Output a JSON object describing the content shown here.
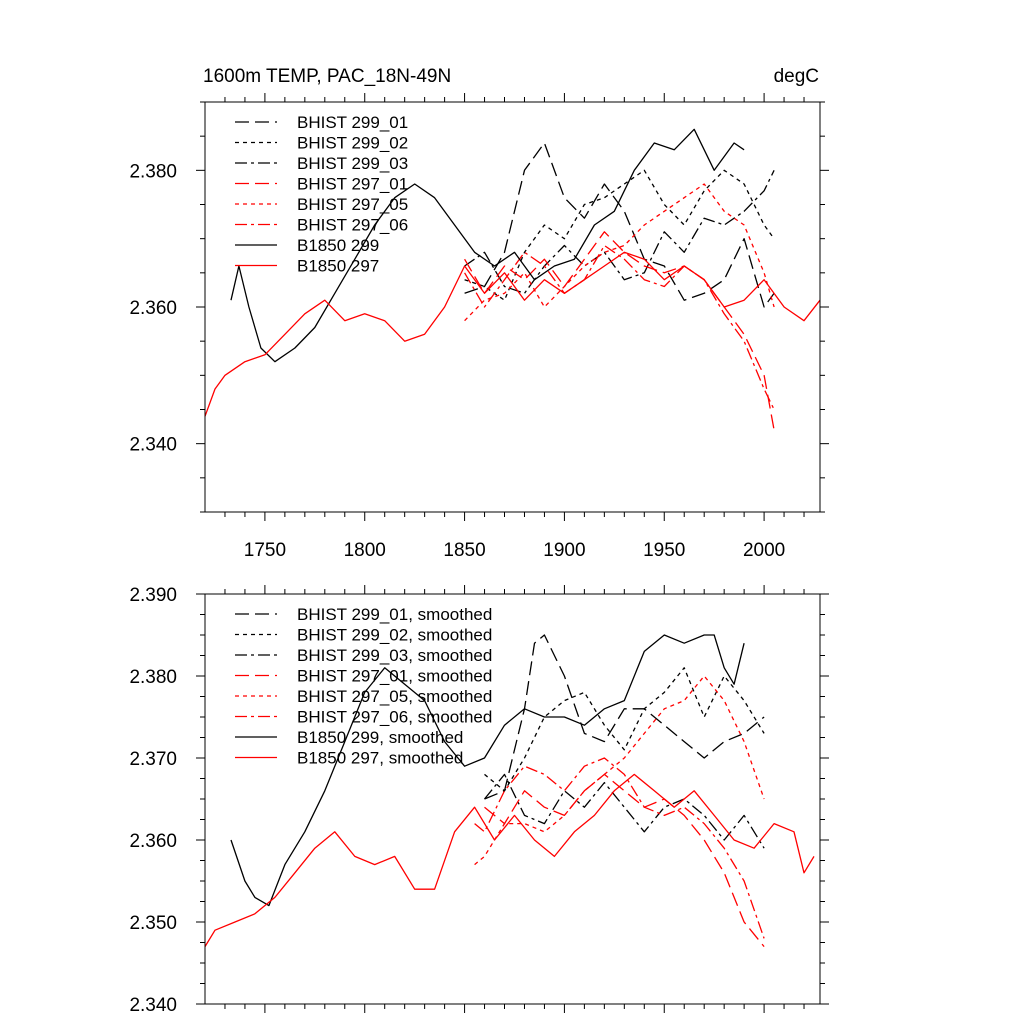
{
  "chart_data": [
    {
      "type": "line",
      "title": "1600m TEMP, PAC_18N-49N",
      "title_right": "degC",
      "xlim": [
        1720,
        2028
      ],
      "ylim": [
        2.33,
        2.39
      ],
      "xticks": [
        1750,
        1800,
        1850,
        1900,
        1950,
        2000
      ],
      "xtick_labels": [
        "1750",
        "1800",
        "1850",
        "1900",
        "1950",
        "2000"
      ],
      "yticks": [
        2.34,
        2.36,
        2.38
      ],
      "ytick_labels": [
        "2.340",
        "2.360",
        "2.380"
      ],
      "grid": false,
      "legend_position": "top-left",
      "series": [
        {
          "name": "BHIST 299_01",
          "color": "#000000",
          "style": "long-dash",
          "x": [
            1850,
            1860,
            1870,
            1880,
            1890,
            1900,
            1910,
            1920,
            1930,
            1940,
            1950,
            1960,
            1970,
            1980,
            1990,
            2000,
            2005
          ],
          "y": [
            2.362,
            2.363,
            2.368,
            2.38,
            2.384,
            2.376,
            2.373,
            2.378,
            2.374,
            2.367,
            2.366,
            2.361,
            2.362,
            2.364,
            2.37,
            2.36,
            2.362
          ]
        },
        {
          "name": "BHIST 299_02",
          "color": "#000000",
          "style": "short-dash",
          "x": [
            1850,
            1860,
            1870,
            1880,
            1890,
            1900,
            1910,
            1920,
            1930,
            1940,
            1950,
            1960,
            1970,
            1980,
            1990,
            2000,
            2005
          ],
          "y": [
            2.364,
            2.363,
            2.361,
            2.368,
            2.372,
            2.37,
            2.375,
            2.376,
            2.378,
            2.38,
            2.375,
            2.372,
            2.377,
            2.38,
            2.378,
            2.372,
            2.37
          ]
        },
        {
          "name": "BHIST 299_03",
          "color": "#000000",
          "style": "dash-dot",
          "x": [
            1850,
            1860,
            1870,
            1880,
            1890,
            1900,
            1910,
            1920,
            1930,
            1940,
            1950,
            1960,
            1970,
            1980,
            1990,
            2000,
            2005
          ],
          "y": [
            2.366,
            2.368,
            2.363,
            2.362,
            2.366,
            2.369,
            2.366,
            2.368,
            2.364,
            2.365,
            2.371,
            2.368,
            2.373,
            2.372,
            2.374,
            2.377,
            2.38
          ]
        },
        {
          "name": "BHIST 297_01",
          "color": "#ff0000",
          "style": "long-dash",
          "x": [
            1850,
            1860,
            1870,
            1880,
            1890,
            1900,
            1910,
            1920,
            1930,
            1940,
            1950,
            1960,
            1970,
            1980,
            1990,
            2000,
            2005
          ],
          "y": [
            2.367,
            2.362,
            2.366,
            2.364,
            2.367,
            2.363,
            2.367,
            2.371,
            2.368,
            2.366,
            2.365,
            2.366,
            2.364,
            2.36,
            2.356,
            2.35,
            2.342
          ]
        },
        {
          "name": "BHIST 297_05",
          "color": "#ff0000",
          "style": "short-dash",
          "x": [
            1850,
            1860,
            1870,
            1880,
            1890,
            1900,
            1910,
            1920,
            1930,
            1940,
            1950,
            1960,
            1970,
            1980,
            1990,
            2000,
            2005
          ],
          "y": [
            2.358,
            2.361,
            2.362,
            2.365,
            2.36,
            2.363,
            2.366,
            2.368,
            2.369,
            2.372,
            2.374,
            2.376,
            2.378,
            2.374,
            2.372,
            2.365,
            2.36
          ]
        },
        {
          "name": "BHIST 297_06",
          "color": "#ff0000",
          "style": "dash-dot",
          "x": [
            1850,
            1860,
            1870,
            1880,
            1890,
            1900,
            1910,
            1920,
            1930,
            1940,
            1950,
            1960,
            1970,
            1980,
            1990,
            2000,
            2005
          ],
          "y": [
            2.365,
            2.36,
            2.364,
            2.368,
            2.366,
            2.362,
            2.364,
            2.369,
            2.367,
            2.364,
            2.363,
            2.366,
            2.364,
            2.359,
            2.355,
            2.348,
            2.345
          ]
        },
        {
          "name": "B1850 299",
          "color": "#000000",
          "style": "solid",
          "x": [
            1733,
            1737,
            1742,
            1748,
            1755,
            1765,
            1775,
            1785,
            1795,
            1805,
            1815,
            1825,
            1835,
            1845,
            1855,
            1865,
            1875,
            1885,
            1895,
            1905,
            1915,
            1925,
            1935,
            1945,
            1955,
            1965,
            1975,
            1985,
            1990
          ],
          "y": [
            2.361,
            2.366,
            2.36,
            2.354,
            2.352,
            2.354,
            2.357,
            2.362,
            2.367,
            2.372,
            2.376,
            2.378,
            2.376,
            2.372,
            2.368,
            2.366,
            2.368,
            2.364,
            2.366,
            2.367,
            2.372,
            2.374,
            2.38,
            2.384,
            2.383,
            2.386,
            2.38,
            2.384,
            2.383
          ]
        },
        {
          "name": "B1850 297",
          "color": "#ff0000",
          "style": "solid",
          "x": [
            1720,
            1725,
            1730,
            1740,
            1750,
            1760,
            1770,
            1780,
            1790,
            1800,
            1810,
            1820,
            1830,
            1840,
            1850,
            1860,
            1870,
            1880,
            1890,
            1900,
            1910,
            1920,
            1930,
            1940,
            1950,
            1960,
            1970,
            1980,
            1990,
            2000,
            2010,
            2020,
            2028
          ],
          "y": [
            2.344,
            2.348,
            2.35,
            2.352,
            2.353,
            2.356,
            2.359,
            2.361,
            2.358,
            2.359,
            2.358,
            2.355,
            2.356,
            2.36,
            2.366,
            2.362,
            2.365,
            2.361,
            2.364,
            2.362,
            2.364,
            2.366,
            2.368,
            2.367,
            2.364,
            2.366,
            2.364,
            2.36,
            2.361,
            2.364,
            2.36,
            2.358,
            2.361
          ]
        }
      ]
    },
    {
      "type": "line",
      "title": "",
      "xlim": [
        1720,
        2028
      ],
      "ylim": [
        2.34,
        2.39
      ],
      "xticks": [
        1750,
        1800,
        1850,
        1900,
        1950,
        2000
      ],
      "xtick_labels": [],
      "yticks": [
        2.34,
        2.35,
        2.36,
        2.37,
        2.38,
        2.39
      ],
      "ytick_labels": [
        "2.340",
        "2.350",
        "2.360",
        "2.370",
        "2.380",
        "2.390"
      ],
      "grid": false,
      "legend_position": "top-left",
      "series": [
        {
          "name": "BHIST 299_01, smoothed",
          "color": "#000000",
          "style": "long-dash",
          "x": [
            1860,
            1870,
            1880,
            1885,
            1890,
            1900,
            1910,
            1920,
            1930,
            1940,
            1950,
            1960,
            1970,
            1980,
            1990,
            2000
          ],
          "y": [
            2.365,
            2.366,
            2.376,
            2.384,
            2.385,
            2.38,
            2.373,
            2.372,
            2.376,
            2.376,
            2.374,
            2.372,
            2.37,
            2.372,
            2.373,
            2.375
          ]
        },
        {
          "name": "BHIST 299_02, smoothed",
          "color": "#000000",
          "style": "short-dash",
          "x": [
            1860,
            1870,
            1880,
            1890,
            1900,
            1910,
            1920,
            1930,
            1940,
            1950,
            1960,
            1970,
            1980,
            1990,
            2000
          ],
          "y": [
            2.368,
            2.366,
            2.37,
            2.375,
            2.377,
            2.378,
            2.374,
            2.371,
            2.376,
            2.378,
            2.381,
            2.375,
            2.38,
            2.377,
            2.373
          ]
        },
        {
          "name": "BHIST 299_03, smoothed",
          "color": "#000000",
          "style": "dash-dot",
          "x": [
            1860,
            1870,
            1880,
            1890,
            1900,
            1910,
            1920,
            1930,
            1940,
            1950,
            1960,
            1970,
            1980,
            1990,
            2000
          ],
          "y": [
            2.365,
            2.368,
            2.363,
            2.362,
            2.366,
            2.364,
            2.367,
            2.364,
            2.361,
            2.364,
            2.365,
            2.363,
            2.36,
            2.363,
            2.359
          ]
        },
        {
          "name": "BHIST 297_01, smoothed",
          "color": "#ff0000",
          "style": "long-dash",
          "x": [
            1860,
            1870,
            1880,
            1890,
            1900,
            1910,
            1920,
            1930,
            1940,
            1950,
            1960,
            1970,
            1980,
            1990,
            2000
          ],
          "y": [
            2.364,
            2.362,
            2.366,
            2.364,
            2.363,
            2.366,
            2.368,
            2.366,
            2.364,
            2.365,
            2.363,
            2.36,
            2.356,
            2.35,
            2.347
          ]
        },
        {
          "name": "BHIST 297_05, smoothed",
          "color": "#ff0000",
          "style": "short-dash",
          "x": [
            1855,
            1860,
            1870,
            1880,
            1890,
            1900,
            1910,
            1920,
            1930,
            1940,
            1950,
            1960,
            1970,
            1980,
            1990,
            2000
          ],
          "y": [
            2.357,
            2.358,
            2.362,
            2.362,
            2.361,
            2.363,
            2.366,
            2.368,
            2.37,
            2.373,
            2.376,
            2.377,
            2.38,
            2.377,
            2.372,
            2.365
          ]
        },
        {
          "name": "BHIST 297_06, smoothed",
          "color": "#ff0000",
          "style": "dash-dot",
          "x": [
            1855,
            1860,
            1870,
            1880,
            1890,
            1900,
            1910,
            1920,
            1930,
            1940,
            1950,
            1960,
            1970,
            1980,
            1990,
            2000
          ],
          "y": [
            2.362,
            2.361,
            2.366,
            2.369,
            2.368,
            2.366,
            2.369,
            2.37,
            2.368,
            2.364,
            2.363,
            2.364,
            2.362,
            2.359,
            2.355,
            2.348
          ]
        },
        {
          "name": "B1850 299, smoothed",
          "color": "#000000",
          "style": "solid",
          "x": [
            1733,
            1740,
            1745,
            1752,
            1760,
            1770,
            1780,
            1790,
            1800,
            1810,
            1820,
            1830,
            1840,
            1850,
            1860,
            1870,
            1880,
            1890,
            1900,
            1910,
            1920,
            1930,
            1940,
            1950,
            1960,
            1970,
            1975,
            1980,
            1985,
            1990
          ],
          "y": [
            2.36,
            2.355,
            2.353,
            2.352,
            2.357,
            2.361,
            2.366,
            2.372,
            2.378,
            2.381,
            2.379,
            2.377,
            2.372,
            2.369,
            2.37,
            2.374,
            2.376,
            2.375,
            2.375,
            2.374,
            2.376,
            2.377,
            2.383,
            2.385,
            2.384,
            2.385,
            2.385,
            2.381,
            2.379,
            2.384
          ]
        },
        {
          "name": "B1850 297, smoothed",
          "color": "#ff0000",
          "style": "solid",
          "x": [
            1720,
            1725,
            1735,
            1745,
            1755,
            1765,
            1775,
            1785,
            1795,
            1805,
            1815,
            1825,
            1835,
            1845,
            1855,
            1865,
            1875,
            1885,
            1895,
            1905,
            1915,
            1925,
            1935,
            1945,
            1955,
            1965,
            1975,
            1985,
            1995,
            2005,
            2015,
            2020,
            2025
          ],
          "y": [
            2.347,
            2.349,
            2.35,
            2.351,
            2.353,
            2.356,
            2.359,
            2.361,
            2.358,
            2.357,
            2.358,
            2.354,
            2.354,
            2.361,
            2.364,
            2.36,
            2.363,
            2.36,
            2.358,
            2.361,
            2.363,
            2.366,
            2.368,
            2.366,
            2.364,
            2.366,
            2.363,
            2.36,
            2.359,
            2.362,
            2.361,
            2.356,
            2.358
          ]
        }
      ]
    }
  ]
}
